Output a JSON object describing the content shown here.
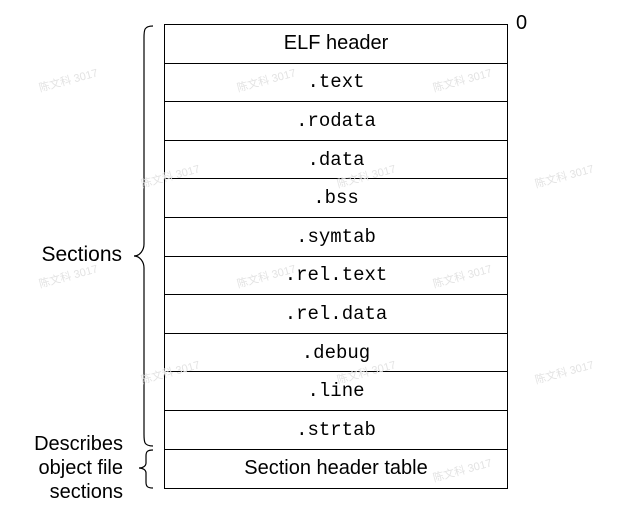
{
  "offset_label": "0",
  "rows": [
    {
      "text": "ELF header",
      "style": "sans"
    },
    {
      "text": ".text",
      "style": "mono"
    },
    {
      "text": ".rodata",
      "style": "mono"
    },
    {
      "text": ".data",
      "style": "mono"
    },
    {
      "text": ".bss",
      "style": "mono"
    },
    {
      "text": ".symtab",
      "style": "mono"
    },
    {
      "text": ".rel.text",
      "style": "mono"
    },
    {
      "text": ".rel.data",
      "style": "mono"
    },
    {
      "text": ".debug",
      "style": "mono"
    },
    {
      "text": ".line",
      "style": "mono"
    },
    {
      "text": ".strtab",
      "style": "mono"
    },
    {
      "text": "Section header table",
      "style": "sans"
    }
  ],
  "labels": {
    "sections": "Sections",
    "describes_line1": "Describes",
    "describes_line2": "object file",
    "describes_line3": "sections"
  },
  "watermark_text": "陈文科 3017"
}
